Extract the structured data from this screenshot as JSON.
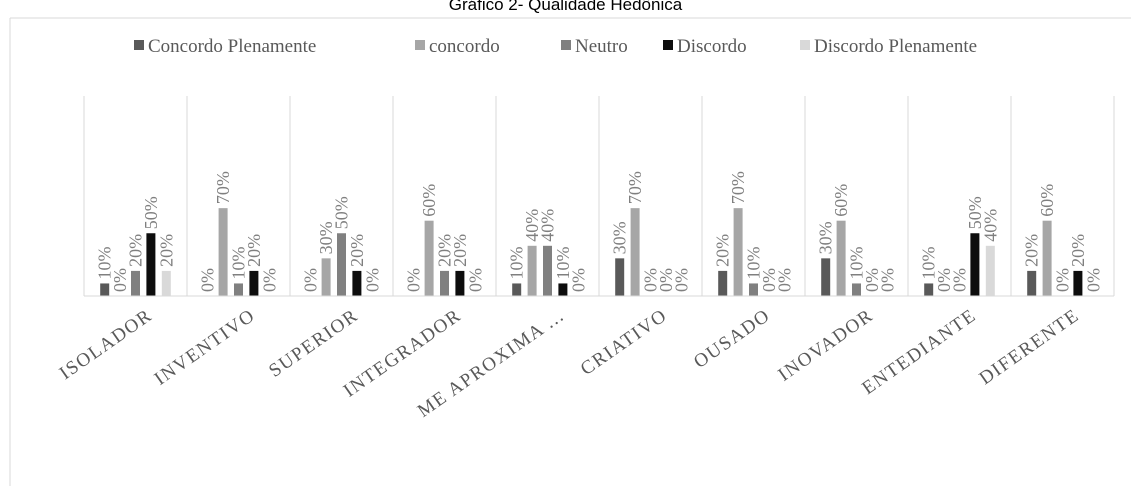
{
  "chart_data": {
    "type": "bar",
    "title": "Gráfico 2- Qualidade Hedônica",
    "categories": [
      "ISOLADOR",
      "INVENTIVO",
      "SUPERIOR",
      "INTEGRADOR",
      "ME APROXIMA ...",
      "CRIATIVO",
      "OUSADO",
      "INOVADOR",
      "ENTEDIANTE",
      "DIFERENTE"
    ],
    "series": [
      {
        "name": "Concordo Plenamente",
        "color": "#595959",
        "values": [
          10,
          0,
          0,
          0,
          10,
          30,
          20,
          30,
          10,
          20
        ]
      },
      {
        "name": "concordo",
        "color": "#a6a6a6",
        "values": [
          0,
          70,
          30,
          60,
          40,
          70,
          70,
          60,
          0,
          60
        ]
      },
      {
        "name": "Neutro",
        "color": "#808080",
        "values": [
          20,
          10,
          50,
          20,
          40,
          0,
          10,
          10,
          0,
          0
        ]
      },
      {
        "name": "Discordo",
        "color": "#0d0d0d",
        "values": [
          50,
          20,
          20,
          20,
          10,
          0,
          0,
          0,
          50,
          20
        ]
      },
      {
        "name": "Discordo Plenamente",
        "color": "#d9d9d9",
        "values": [
          20,
          0,
          0,
          0,
          0,
          0,
          0,
          0,
          40,
          0
        ]
      }
    ],
    "value_suffix": "%",
    "ylim": [
      0,
      100
    ],
    "grid": false,
    "legend_position": "top"
  }
}
